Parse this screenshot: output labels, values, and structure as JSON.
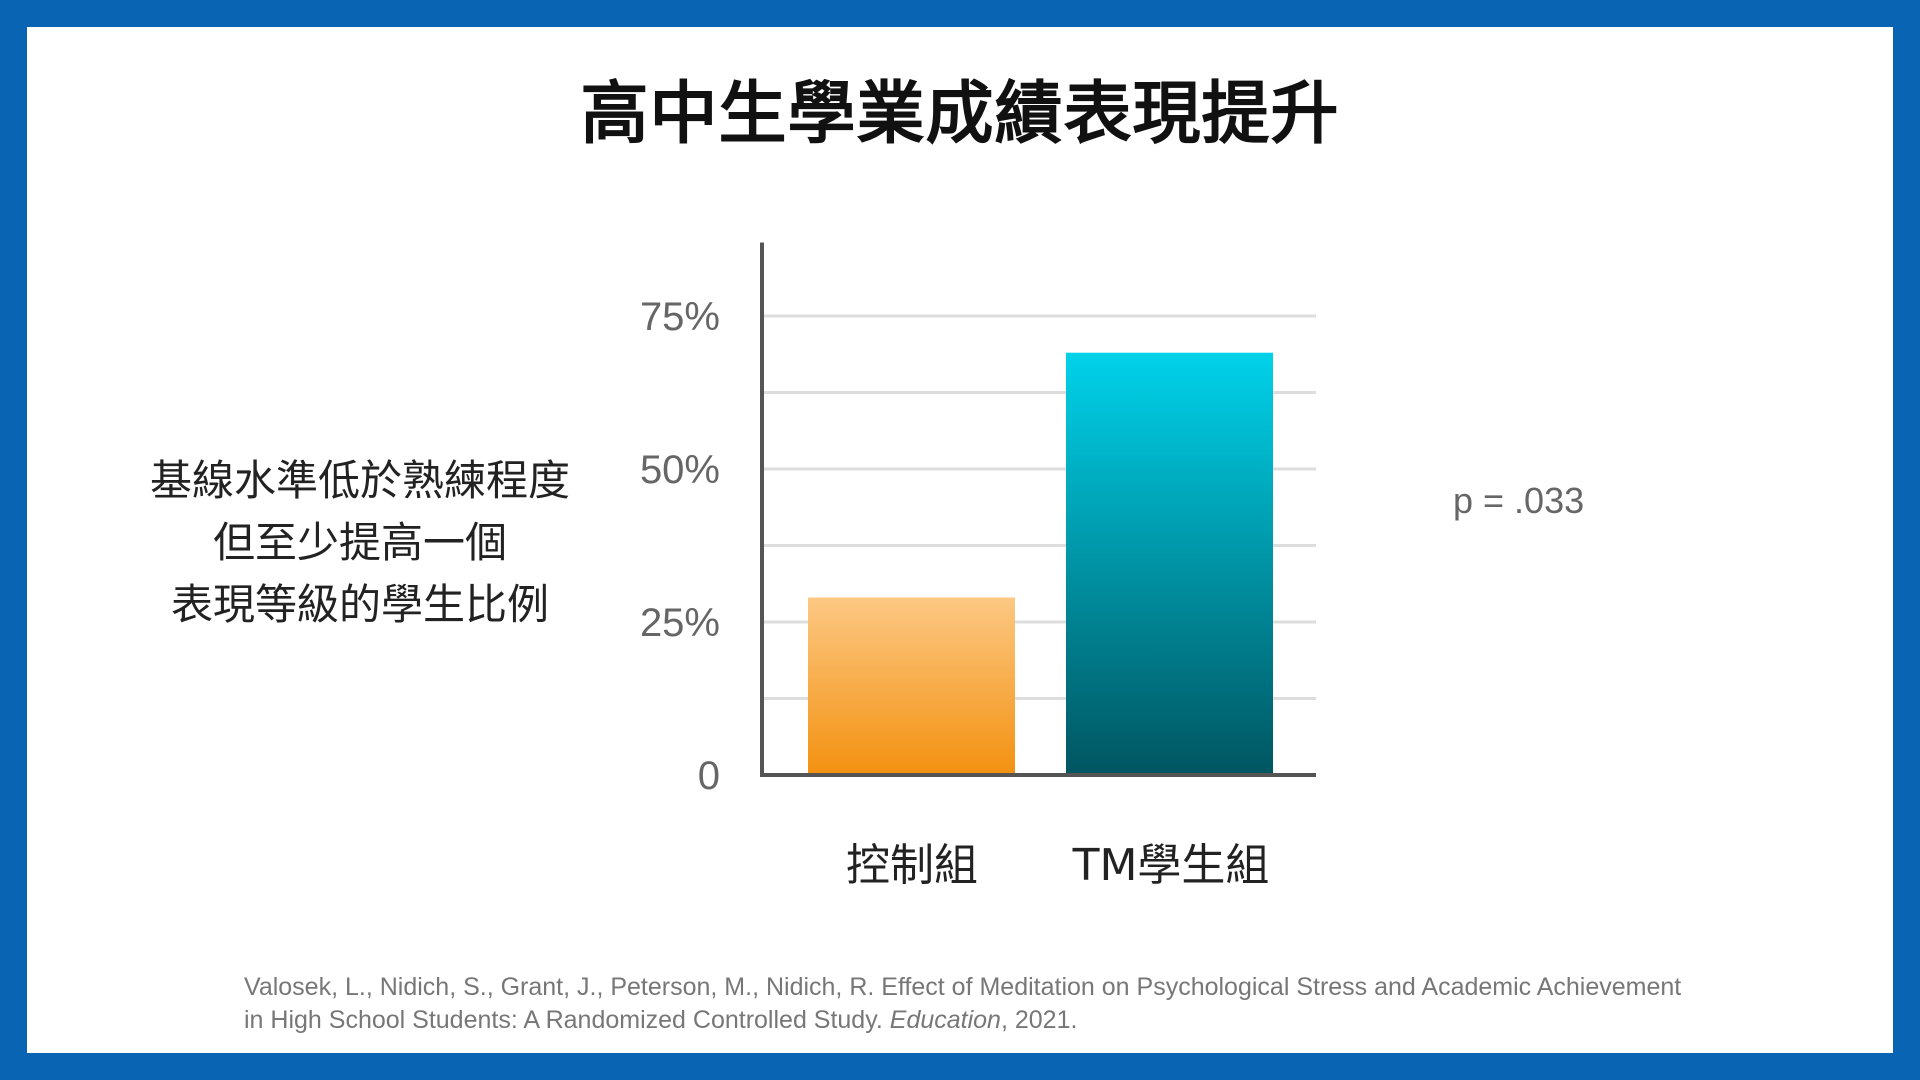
{
  "title": "高中生學業成績表現提升",
  "description": [
    "基線水準低於熟練程度",
    "但至少提高一個",
    "表現等級的學生比例"
  ],
  "p_value": "p = .033",
  "citation": {
    "line1": "Valosek, L., Nidich, S., Grant, J., Peterson, M., Nidich, R.  Effect of Meditation on Psychological Stress and Academic Achievement",
    "line2_prefix": "in High School Students: A Randomized Controlled Study. ",
    "journal": "Education",
    "line2_suffix": ", 2021."
  },
  "colors": {
    "border": "#0a64b4",
    "orange_top": "#fcc883",
    "orange_bottom": "#f39110",
    "teal_top": "#00d2ea",
    "teal_bottom": "#005560",
    "grid": "#dddddd",
    "axis": "#555555"
  },
  "chart_data": {
    "type": "bar",
    "title": "高中生學業成績表現提升",
    "categories": [
      "控制組",
      "TM學生組"
    ],
    "values": [
      29,
      69
    ],
    "ylim": [
      0,
      87
    ],
    "yticks": [
      0,
      25,
      50,
      75
    ],
    "ytick_labels": [
      "0",
      "25%",
      "50%",
      "75%"
    ],
    "minor_gridlines": [
      12.5,
      37.5,
      62.5
    ],
    "grid": true,
    "xlabel": "",
    "ylabel": ""
  }
}
